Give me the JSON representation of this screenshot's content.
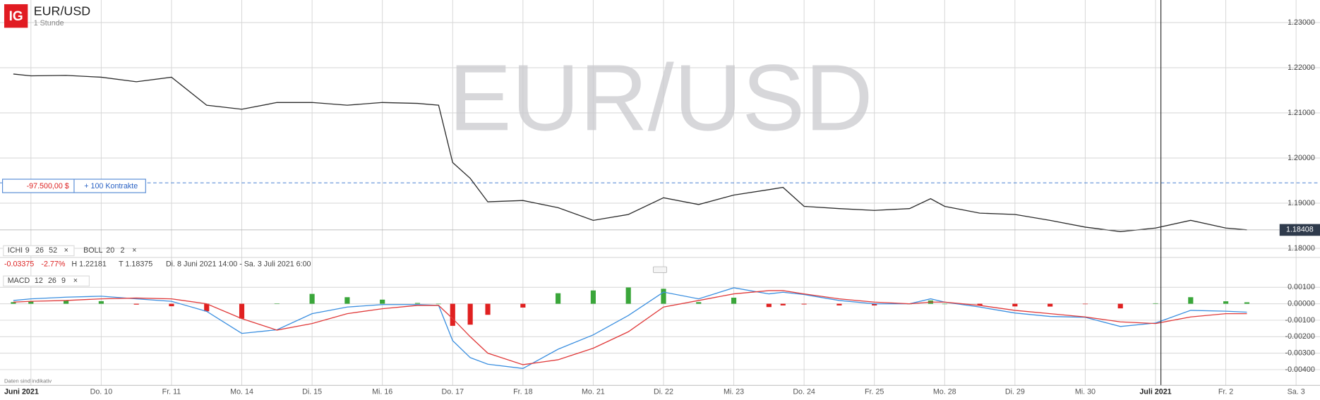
{
  "header": {
    "logo": "IG",
    "symbol": "EUR/USD",
    "interval": "1 Stunde"
  },
  "watermark": "EUR/USD",
  "position": {
    "amount": "-97.500,00 $",
    "contracts": "+ 100 Kontrakte"
  },
  "legend": {
    "ichi": {
      "name": "ICHI",
      "params": [
        9,
        26,
        52
      ]
    },
    "boll": {
      "name": "BOLL",
      "params": [
        20,
        2
      ]
    },
    "change": "-0.03375",
    "change_pct": "-2.77%",
    "high": "H 1.22181",
    "low": "T 1.18375",
    "range": "Di. 8 Juni 2021 14:00 - Sa. 3 Juli 2021 6:00"
  },
  "footer": "Daten sind indikativ",
  "chart_data": [
    {
      "type": "line",
      "x": [
        -0.25,
        0,
        0.5,
        1,
        1.5,
        2,
        2.5,
        3,
        3.5,
        4,
        4.5,
        5,
        5.5,
        5.8,
        6,
        6.25,
        6.5,
        7,
        7.5,
        8,
        8.5,
        9,
        9.5,
        10,
        10.5,
        10.7,
        11,
        11.5,
        12,
        12.5,
        12.8,
        13,
        13.5,
        14,
        14.5,
        15,
        15.5,
        16,
        16.5,
        17,
        17.3
      ],
      "xlim": [
        -0.44,
        18.34
      ],
      "xticks": [
        {
          "value": 0,
          "label": "Juni 2021"
        },
        {
          "value": 1,
          "label": "Do. 10"
        },
        {
          "value": 2,
          "label": "Fr. 11"
        },
        {
          "value": 3,
          "label": "Mo. 14"
        },
        {
          "value": 4,
          "label": "Di. 15"
        },
        {
          "value": 5,
          "label": "Mi. 16"
        },
        {
          "value": 6,
          "label": "Do. 17"
        },
        {
          "value": 7,
          "label": "Fr. 18"
        },
        {
          "value": 8,
          "label": "Mo. 21"
        },
        {
          "value": 9,
          "label": "Di. 22"
        },
        {
          "value": 10,
          "label": "Mi. 23"
        },
        {
          "value": 11,
          "label": "Do. 24"
        },
        {
          "value": 12,
          "label": "Fr. 25"
        },
        {
          "value": 13,
          "label": "Mo. 28"
        },
        {
          "value": 14,
          "label": "Di. 29"
        },
        {
          "value": 15,
          "label": "Mi. 30"
        },
        {
          "value": 16,
          "label": "Juli 2021"
        },
        {
          "value": 17,
          "label": "Fr. 2"
        },
        {
          "value": 18,
          "label": "Sa. 3"
        }
      ],
      "ylim": [
        1.1791,
        1.235
      ],
      "yticks": [
        {
          "value": 1.18,
          "label": "1.18000"
        },
        {
          "value": 1.19,
          "label": "1.19000"
        },
        {
          "value": 1.2,
          "label": "1.20000"
        },
        {
          "value": 1.21,
          "label": "1.21000"
        },
        {
          "value": 1.22,
          "label": "1.22000"
        },
        {
          "value": 1.23,
          "label": "1.23000"
        }
      ],
      "grid": true,
      "series": [
        {
          "color": "#2b2b2b",
          "values": [
            1.2186,
            1.2182,
            1.2183,
            1.2179,
            1.2169,
            1.2179,
            1.2117,
            1.2108,
            1.2123,
            1.2123,
            1.2117,
            1.2123,
            1.2121,
            1.2117,
            1.199,
            1.1955,
            1.1903,
            1.1906,
            1.189,
            1.1862,
            1.1875,
            1.1912,
            1.1897,
            1.1918,
            1.193,
            1.1935,
            1.1893,
            1.1888,
            1.1884,
            1.1888,
            1.191,
            1.1893,
            1.1878,
            1.1875,
            1.1862,
            1.1847,
            1.1837,
            1.1845,
            1.1862,
            1.1845,
            1.1841
          ]
        }
      ],
      "position_level": 1.1945,
      "last_price": 1.18408
    },
    {
      "type": "macd",
      "title": "MACD",
      "params": [
        12,
        26,
        9
      ],
      "ylim": [
        -0.0048,
        0.0022
      ],
      "yticks": [
        {
          "value": -0.004,
          "label": "-0.00400"
        },
        {
          "value": -0.003,
          "label": "-0.00300"
        },
        {
          "value": -0.002,
          "label": "-0.00200"
        },
        {
          "value": -0.001,
          "label": "-0.00100"
        },
        {
          "value": 0,
          "label": "0.00000"
        },
        {
          "value": 0.001,
          "label": "0.00100"
        }
      ],
      "grid": true,
      "x": [
        -0.25,
        0,
        0.5,
        1,
        1.5,
        2,
        2.5,
        3,
        3.5,
        4,
        4.5,
        5,
        5.5,
        5.8,
        6,
        6.25,
        6.5,
        7,
        7.5,
        8,
        8.5,
        9,
        9.5,
        10,
        10.5,
        10.7,
        11,
        11.5,
        12,
        12.5,
        12.8,
        13,
        13.5,
        14,
        14.5,
        15,
        15.5,
        16,
        16.5,
        17,
        17.3
      ],
      "series": [
        {
          "color": "#3b8fe0",
          "values": [
            0.0002,
            0.0003,
            0.0004,
            0.00046,
            0.0003,
            0.00015,
            -0.00046,
            -0.0018,
            -0.00158,
            -0.0006,
            -0.0002,
            -5e-05,
            -5e-05,
            -0.0001,
            -0.00224,
            -0.00327,
            -0.00367,
            -0.00393,
            -0.00276,
            -0.00189,
            -0.00071,
            0.00071,
            0.0003,
            0.00097,
            0.0006,
            0.0007,
            0.00056,
            0.0002,
            0,
            0,
            0.0003,
            0.0001,
            -0.0002,
            -0.00056,
            -0.00077,
            -0.00082,
            -0.00138,
            -0.00117,
            -0.0004,
            -0.00045,
            -0.00051
          ]
        },
        {
          "color": "#e03a3a",
          "values": [
            0.0001,
            0.00015,
            0.0002,
            0.0003,
            0.00035,
            0.0003,
            0,
            -0.0009,
            -0.0016,
            -0.0012,
            -0.0006,
            -0.0003,
            -0.0001,
            -0.0001,
            -0.0009,
            -0.002,
            -0.003,
            -0.0037,
            -0.0034,
            -0.0027,
            -0.0017,
            -0.0002,
            0.0002,
            0.0006,
            0.0008,
            0.0008,
            0.0006,
            0.0003,
            0.0001,
            0,
            0.0001,
            0.0001,
            -0.0001,
            -0.0004,
            -0.0006,
            -0.0008,
            -0.0011,
            -0.0012,
            -0.0008,
            -0.0006,
            -0.0006
          ]
        }
      ],
      "histogram": {
        "positive_color": "#3aa63a",
        "negative_color": "#e02020",
        "values": [
          0.0001,
          0.00015,
          0.0002,
          0.00016,
          -5e-05,
          -0.00015,
          -0.00046,
          -0.0009,
          2e-05,
          0.0006,
          0.0004,
          0.00025,
          5e-05,
          0,
          -0.00134,
          -0.00127,
          -0.00067,
          -0.00023,
          0.00064,
          0.00081,
          0.00099,
          0.00091,
          0.0001,
          0.00037,
          -0.0002,
          -0.0001,
          -4e-05,
          -0.0001,
          -0.0001,
          0,
          0.0002,
          0,
          -0.0001,
          -0.00016,
          -0.00017,
          -2e-05,
          -0.00028,
          3e-05,
          0.0004,
          0.00015,
          9e-05
        ]
      }
    }
  ]
}
